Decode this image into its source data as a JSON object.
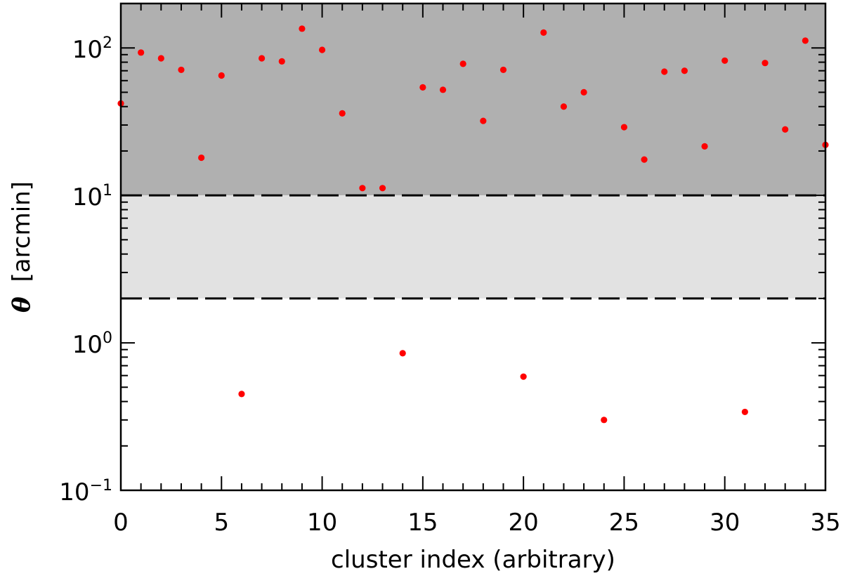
{
  "chart_data": {
    "type": "scatter",
    "xlabel": "cluster index (arbitrary)",
    "ylabel_symbol": "θ",
    "ylabel_unit": "[arcmin]",
    "xlim": [
      0,
      35
    ],
    "ylim": [
      0.1,
      200
    ],
    "y_scale": "log",
    "x_major_ticks": [
      0,
      5,
      10,
      15,
      20,
      25,
      30,
      35
    ],
    "x_tick_labels": [
      "0",
      "5",
      "10",
      "15",
      "20",
      "25",
      "30",
      "35"
    ],
    "x_minor_step": 1,
    "y_major_ticks": [
      {
        "value": 0.1,
        "base": "10",
        "exp": "−1"
      },
      {
        "value": 1,
        "base": "10",
        "exp": "0"
      },
      {
        "value": 10,
        "base": "10",
        "exp": "1"
      },
      {
        "value": 100,
        "base": "10",
        "exp": "2"
      }
    ],
    "bands": [
      {
        "name": "dark-band",
        "y_from": 10,
        "y_to": 200,
        "color": "#b0b0b0"
      },
      {
        "name": "light-band",
        "y_from": 2,
        "y_to": 10,
        "color": "#e2e2e2"
      }
    ],
    "reference_lines": [
      {
        "name": "upper-dashed-line",
        "y": 10,
        "style": "dashed"
      },
      {
        "name": "lower-dashed-line",
        "y": 2,
        "style": "dashed"
      }
    ],
    "grid": false,
    "marker_color": "#ff0000",
    "series": [
      {
        "points": [
          {
            "x": 0,
            "y": 42
          },
          {
            "x": 1,
            "y": 93
          },
          {
            "x": 2,
            "y": 85
          },
          {
            "x": 3,
            "y": 71
          },
          {
            "x": 4,
            "y": 18
          },
          {
            "x": 5,
            "y": 65
          },
          {
            "x": 6,
            "y": 0.45
          },
          {
            "x": 7,
            "y": 85
          },
          {
            "x": 8,
            "y": 81
          },
          {
            "x": 9,
            "y": 135
          },
          {
            "x": 10,
            "y": 97
          },
          {
            "x": 11,
            "y": 36
          },
          {
            "x": 12,
            "y": 11.2
          },
          {
            "x": 13,
            "y": 11.2
          },
          {
            "x": 14,
            "y": 0.85
          },
          {
            "x": 15,
            "y": 54
          },
          {
            "x": 16,
            "y": 52
          },
          {
            "x": 17,
            "y": 78
          },
          {
            "x": 18,
            "y": 32
          },
          {
            "x": 19,
            "y": 71
          },
          {
            "x": 20,
            "y": 0.59
          },
          {
            "x": 21,
            "y": 127
          },
          {
            "x": 22,
            "y": 40
          },
          {
            "x": 23,
            "y": 50
          },
          {
            "x": 24,
            "y": 0.3
          },
          {
            "x": 25,
            "y": 29
          },
          {
            "x": 26,
            "y": 17.5
          },
          {
            "x": 27,
            "y": 69
          },
          {
            "x": 28,
            "y": 70
          },
          {
            "x": 29,
            "y": 21.5
          },
          {
            "x": 30,
            "y": 82
          },
          {
            "x": 31,
            "y": 0.34
          },
          {
            "x": 32,
            "y": 79
          },
          {
            "x": 33,
            "y": 28
          },
          {
            "x": 34,
            "y": 112
          },
          {
            "x": 35,
            "y": 22
          }
        ]
      }
    ]
  }
}
